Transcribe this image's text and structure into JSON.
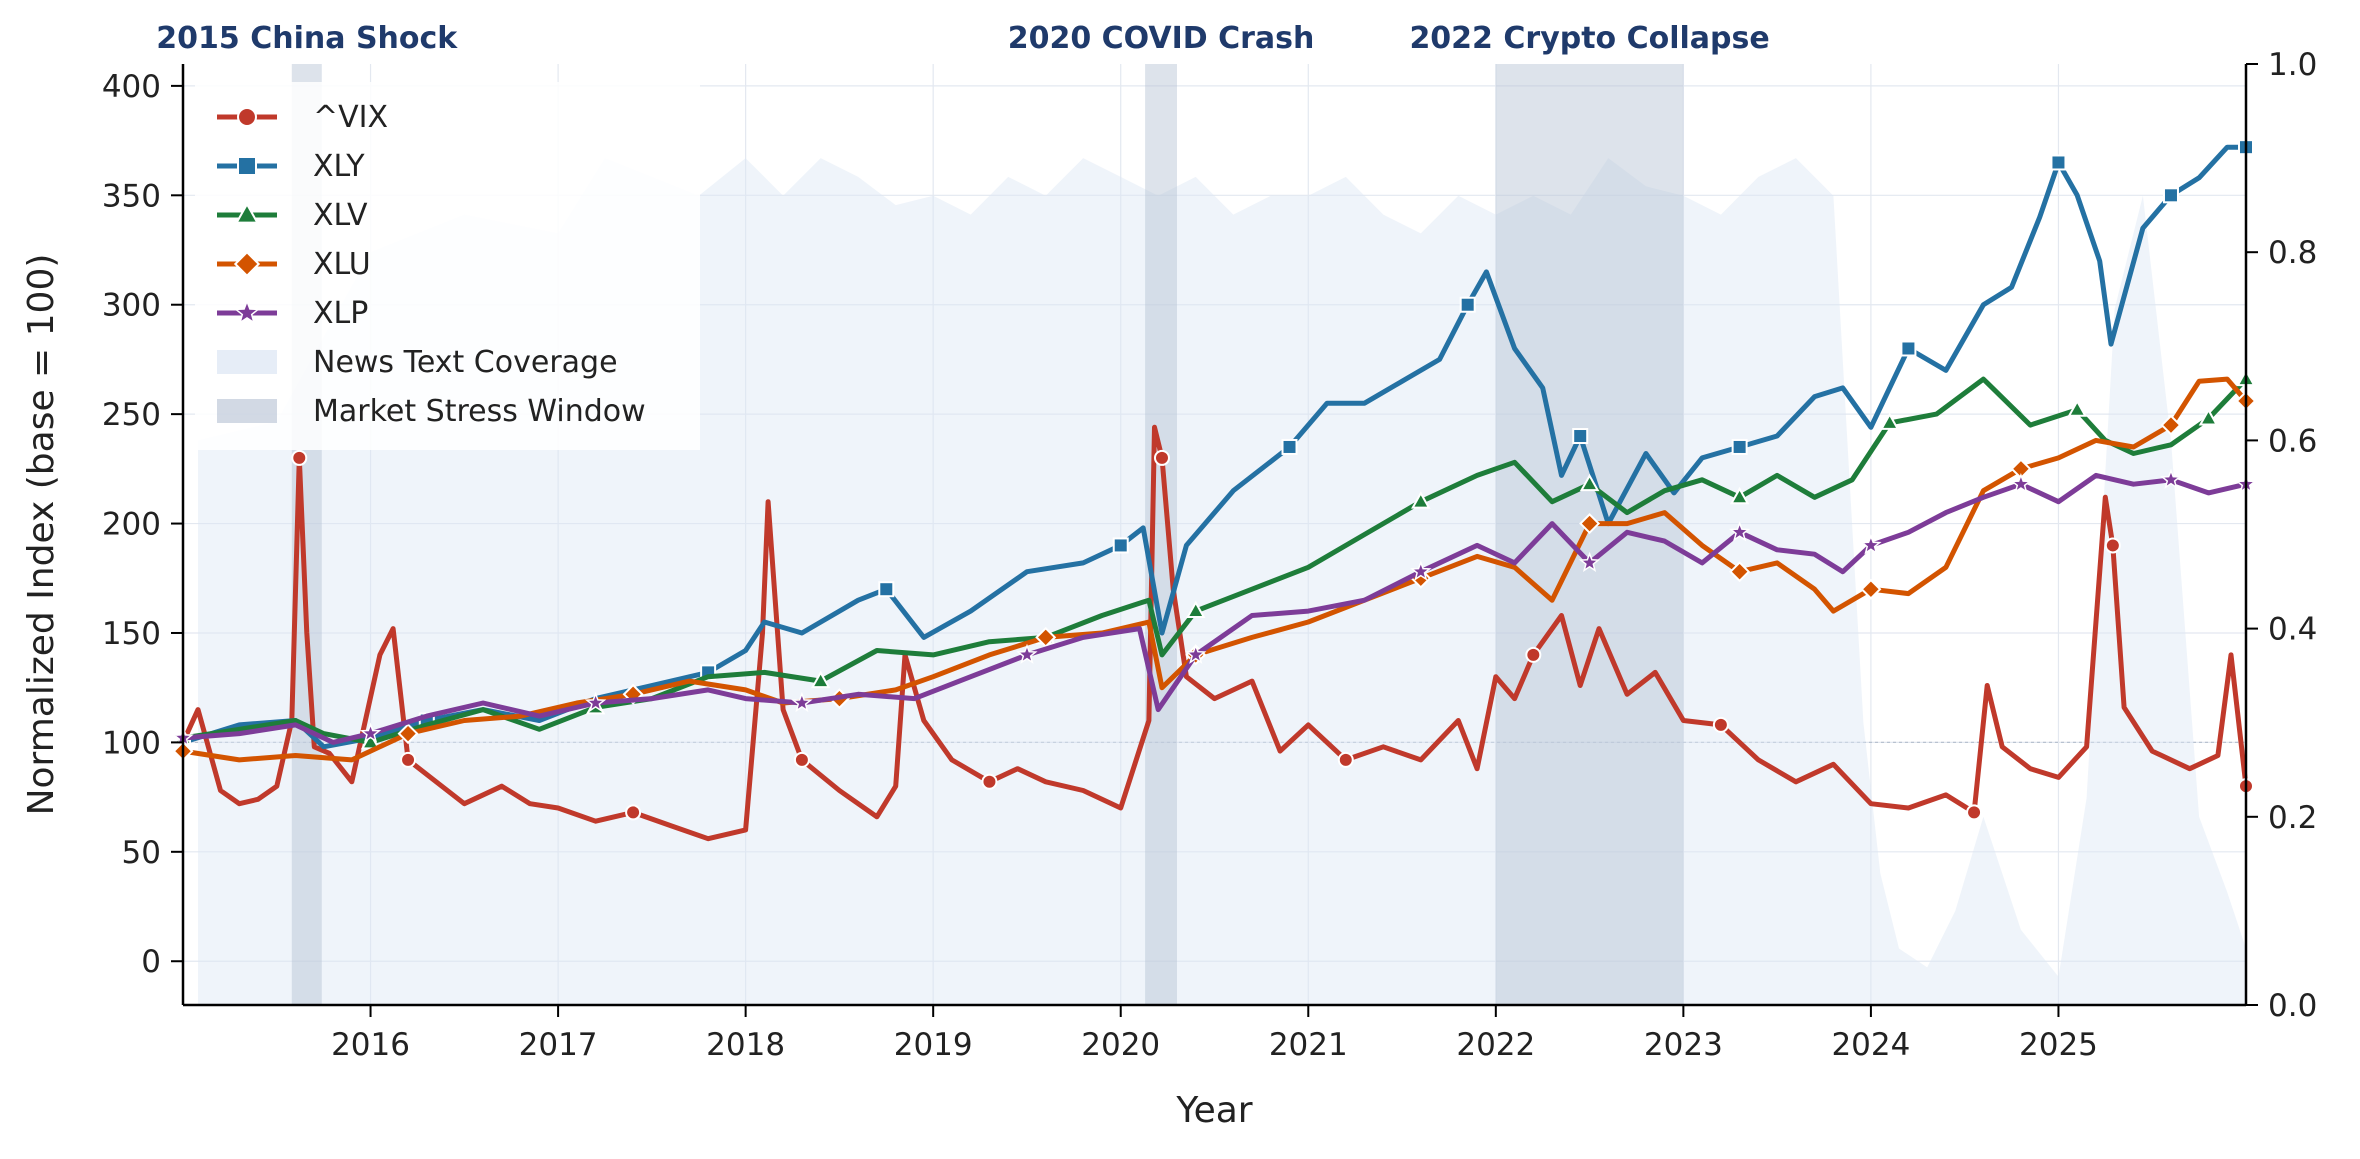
{
  "chart_data": {
    "type": "line",
    "xlabel": "Year",
    "ylabel": "Normalized Index  (base = 100)",
    "xlim": [
      2015.0,
      2026.0
    ],
    "ylim": [
      -20,
      410
    ],
    "y2lim": [
      0.0,
      1.0
    ],
    "grid": true,
    "legend_position": "top-left",
    "x_ticks": [
      2016,
      2017,
      2018,
      2019,
      2020,
      2021,
      2022,
      2023,
      2024,
      2025
    ],
    "y_ticks": [
      0,
      50,
      100,
      150,
      200,
      250,
      300,
      350,
      400
    ],
    "y2_ticks": [
      0.0,
      0.2,
      0.4,
      0.6,
      0.8,
      1.0
    ],
    "baseline": 100,
    "stress_windows": [
      {
        "label": "2015 China Shock",
        "start": 2015.58,
        "end": 2015.74
      },
      {
        "label": "2020 COVID Crash",
        "start": 2020.13,
        "end": 2020.3
      },
      {
        "label": "2022 Crypto Collapse",
        "start": 2022.0,
        "end": 2023.0
      }
    ],
    "legend_extra": {
      "coverage": "News Text Coverage",
      "stress": "Market Stress Window"
    },
    "coverage": {
      "name": "News Text Coverage",
      "color": "#dce6f4",
      "x": [
        2015.08,
        2015.5,
        2016.0,
        2016.5,
        2017.0,
        2017.25,
        2017.5,
        2017.75,
        2018.0,
        2018.2,
        2018.4,
        2018.6,
        2018.8,
        2019.0,
        2019.2,
        2019.4,
        2019.6,
        2019.8,
        2020.0,
        2020.2,
        2020.4,
        2020.6,
        2020.8,
        2021.0,
        2021.2,
        2021.4,
        2021.6,
        2021.8,
        2022.0,
        2022.2,
        2022.4,
        2022.6,
        2022.8,
        2023.0,
        2023.2,
        2023.4,
        2023.6,
        2023.8,
        2023.96,
        2024.05,
        2024.15,
        2024.3,
        2024.45,
        2024.6,
        2024.8,
        2025.0,
        2025.15,
        2025.3,
        2025.45,
        2025.6,
        2025.75,
        2025.9,
        2026.0
      ],
      "values": [
        0.6,
        0.62,
        0.8,
        0.84,
        0.82,
        0.9,
        0.88,
        0.86,
        0.9,
        0.86,
        0.9,
        0.88,
        0.85,
        0.86,
        0.84,
        0.88,
        0.86,
        0.9,
        0.88,
        0.86,
        0.88,
        0.84,
        0.86,
        0.86,
        0.88,
        0.84,
        0.82,
        0.86,
        0.84,
        0.86,
        0.84,
        0.9,
        0.87,
        0.86,
        0.84,
        0.88,
        0.9,
        0.86,
        0.3,
        0.14,
        0.06,
        0.04,
        0.1,
        0.2,
        0.08,
        0.03,
        0.22,
        0.74,
        0.86,
        0.6,
        0.2,
        0.12,
        0.06
      ]
    },
    "series": [
      {
        "name": "^VIX",
        "color": "#c0392b",
        "marker": "circle",
        "x": [
          2015.0,
          2015.08,
          2015.2,
          2015.3,
          2015.4,
          2015.5,
          2015.58,
          2015.62,
          2015.66,
          2015.7,
          2015.78,
          2015.9,
          2016.05,
          2016.12,
          2016.2,
          2016.35,
          2016.5,
          2016.7,
          2016.85,
          2017.0,
          2017.2,
          2017.4,
          2017.6,
          2017.8,
          2018.0,
          2018.09,
          2018.12,
          2018.2,
          2018.3,
          2018.5,
          2018.7,
          2018.8,
          2018.85,
          2018.95,
          2019.1,
          2019.3,
          2019.45,
          2019.6,
          2019.8,
          2020.0,
          2020.15,
          2020.18,
          2020.22,
          2020.28,
          2020.35,
          2020.5,
          2020.7,
          2020.85,
          2021.0,
          2021.2,
          2021.4,
          2021.6,
          2021.8,
          2021.9,
          2022.0,
          2022.1,
          2022.2,
          2022.35,
          2022.45,
          2022.55,
          2022.7,
          2022.85,
          2023.0,
          2023.2,
          2023.4,
          2023.6,
          2023.8,
          2024.0,
          2024.2,
          2024.4,
          2024.55,
          2024.62,
          2024.7,
          2024.85,
          2025.0,
          2025.15,
          2025.25,
          2025.29,
          2025.35,
          2025.5,
          2025.7,
          2025.85,
          2025.92,
          2026.0
        ],
        "values": [
          100,
          115,
          78,
          72,
          74,
          80,
          110,
          230,
          150,
          98,
          95,
          82,
          140,
          152,
          92,
          82,
          72,
          80,
          72,
          70,
          64,
          68,
          62,
          56,
          60,
          150,
          210,
          115,
          92,
          78,
          66,
          80,
          140,
          110,
          92,
          82,
          88,
          82,
          78,
          70,
          110,
          244,
          230,
          170,
          130,
          120,
          128,
          96,
          108,
          92,
          98,
          92,
          110,
          88,
          130,
          120,
          140,
          158,
          126,
          152,
          122,
          132,
          110,
          108,
          92,
          82,
          90,
          72,
          70,
          76,
          68,
          126,
          98,
          88,
          84,
          98,
          212,
          190,
          116,
          96,
          88,
          94,
          140,
          80
        ]
      },
      {
        "name": "XLY",
        "color": "#2471a3",
        "marker": "square",
        "x": [
          2015.0,
          2015.3,
          2015.6,
          2015.75,
          2016.0,
          2016.3,
          2016.6,
          2016.9,
          2017.2,
          2017.5,
          2017.8,
          2018.0,
          2018.1,
          2018.3,
          2018.6,
          2018.75,
          2018.95,
          2019.2,
          2019.5,
          2019.8,
          2020.0,
          2020.12,
          2020.22,
          2020.35,
          2020.6,
          2020.9,
          2021.1,
          2021.3,
          2021.5,
          2021.7,
          2021.85,
          2021.95,
          2022.1,
          2022.25,
          2022.35,
          2022.45,
          2022.6,
          2022.8,
          2022.95,
          2023.1,
          2023.3,
          2023.5,
          2023.7,
          2023.85,
          2024.0,
          2024.2,
          2024.4,
          2024.6,
          2024.75,
          2024.9,
          2025.0,
          2025.1,
          2025.22,
          2025.28,
          2025.45,
          2025.6,
          2025.75,
          2025.9,
          2026.0
        ],
        "values": [
          100,
          108,
          110,
          98,
          102,
          110,
          115,
          110,
          120,
          126,
          132,
          142,
          155,
          150,
          165,
          170,
          148,
          160,
          178,
          182,
          190,
          198,
          150,
          190,
          215,
          235,
          255,
          255,
          265,
          275,
          300,
          315,
          280,
          262,
          222,
          240,
          200,
          232,
          214,
          230,
          235,
          240,
          258,
          262,
          244,
          280,
          270,
          300,
          308,
          340,
          365,
          350,
          320,
          282,
          335,
          350,
          358,
          372,
          372
        ]
      },
      {
        "name": "XLV",
        "color": "#1e7d3a",
        "marker": "triangle",
        "x": [
          2015.0,
          2015.3,
          2015.6,
          2015.75,
          2016.0,
          2016.3,
          2016.6,
          2016.9,
          2017.2,
          2017.5,
          2017.8,
          2018.1,
          2018.4,
          2018.7,
          2019.0,
          2019.3,
          2019.6,
          2019.9,
          2020.15,
          2020.22,
          2020.4,
          2020.7,
          2021.0,
          2021.3,
          2021.6,
          2021.9,
          2022.1,
          2022.3,
          2022.5,
          2022.7,
          2022.9,
          2023.1,
          2023.3,
          2023.5,
          2023.7,
          2023.9,
          2024.1,
          2024.35,
          2024.6,
          2024.85,
          2025.1,
          2025.25,
          2025.4,
          2025.6,
          2025.8,
          2026.0
        ],
        "values": [
          102,
          106,
          110,
          104,
          100,
          108,
          115,
          106,
          116,
          120,
          130,
          132,
          128,
          142,
          140,
          146,
          148,
          158,
          165,
          140,
          160,
          170,
          180,
          195,
          210,
          222,
          228,
          210,
          218,
          205,
          215,
          220,
          212,
          222,
          212,
          220,
          246,
          250,
          266,
          245,
          252,
          238,
          232,
          236,
          248,
          266
        ]
      },
      {
        "name": "XLU",
        "color": "#d35400",
        "marker": "diamond",
        "x": [
          2015.0,
          2015.3,
          2015.6,
          2015.9,
          2016.2,
          2016.5,
          2016.8,
          2017.1,
          2017.4,
          2017.7,
          2018.0,
          2018.2,
          2018.5,
          2018.8,
          2019.0,
          2019.3,
          2019.6,
          2019.9,
          2020.15,
          2020.22,
          2020.4,
          2020.7,
          2021.0,
          2021.3,
          2021.6,
          2021.9,
          2022.1,
          2022.3,
          2022.5,
          2022.7,
          2022.9,
          2023.1,
          2023.3,
          2023.5,
          2023.7,
          2023.8,
          2024.0,
          2024.2,
          2024.4,
          2024.6,
          2024.8,
          2025.0,
          2025.2,
          2025.4,
          2025.6,
          2025.75,
          2025.9,
          2026.0
        ],
        "values": [
          96,
          92,
          94,
          92,
          104,
          110,
          112,
          118,
          122,
          128,
          124,
          118,
          120,
          124,
          130,
          140,
          148,
          150,
          155,
          125,
          140,
          148,
          155,
          165,
          175,
          185,
          180,
          165,
          200,
          200,
          205,
          190,
          178,
          182,
          170,
          160,
          170,
          168,
          180,
          215,
          225,
          230,
          238,
          235,
          245,
          265,
          266,
          256
        ]
      },
      {
        "name": "XLP",
        "color": "#7d3c98",
        "marker": "star",
        "x": [
          2015.0,
          2015.3,
          2015.6,
          2015.8,
          2016.0,
          2016.3,
          2016.6,
          2016.9,
          2017.2,
          2017.5,
          2017.8,
          2018.0,
          2018.3,
          2018.6,
          2018.9,
          2019.2,
          2019.5,
          2019.8,
          2020.1,
          2020.2,
          2020.4,
          2020.7,
          2021.0,
          2021.3,
          2021.6,
          2021.9,
          2022.1,
          2022.3,
          2022.5,
          2022.7,
          2022.9,
          2023.1,
          2023.3,
          2023.5,
          2023.7,
          2023.85,
          2024.0,
          2024.2,
          2024.4,
          2024.6,
          2024.8,
          2025.0,
          2025.2,
          2025.4,
          2025.6,
          2025.8,
          2026.0
        ],
        "values": [
          102,
          104,
          108,
          100,
          104,
          112,
          118,
          112,
          118,
          120,
          124,
          120,
          118,
          122,
          120,
          130,
          140,
          148,
          152,
          115,
          140,
          158,
          160,
          165,
          178,
          190,
          182,
          200,
          182,
          196,
          192,
          182,
          196,
          188,
          186,
          178,
          190,
          196,
          205,
          212,
          218,
          210,
          222,
          218,
          220,
          214,
          218
        ]
      }
    ]
  }
}
